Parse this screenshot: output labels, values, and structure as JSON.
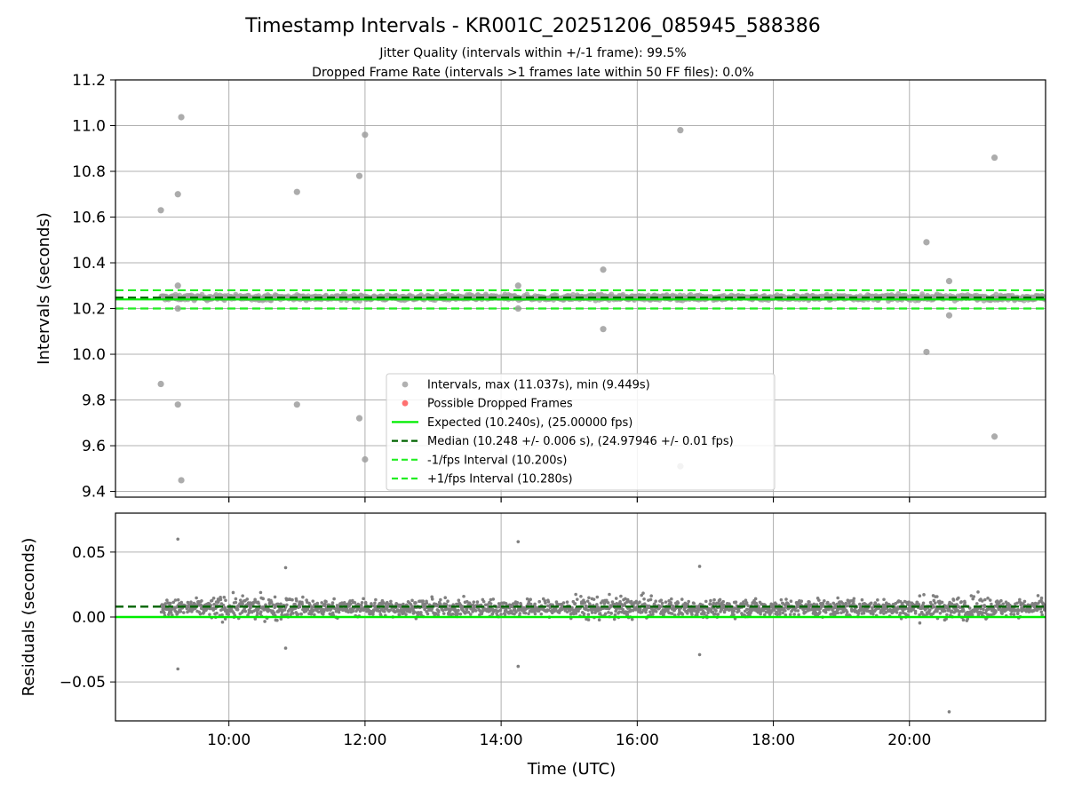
{
  "title": "Timestamp Intervals - KR001C_20251206_085945_588386",
  "subtitle_1": "Jitter Quality (intervals within +/-1 frame): 99.5%",
  "subtitle_2": "Dropped Frame Rate (intervals >1 frames late within 50 FF files): 0.0%",
  "colors": {
    "points": "#9e9e9e",
    "residual_points": "#808080",
    "dropped": "#ff4d4d",
    "expected": "#00ee00",
    "median": "#006400",
    "fps_band": "#22ee22",
    "grid": "#b0b0b0"
  },
  "chart_data": [
    {
      "type": "scatter",
      "panel": "top",
      "ylabel": "Intervals (seconds)",
      "xlim": [
        "08:20",
        "22:00"
      ],
      "ylim": [
        9.375,
        11.2
      ],
      "yticks": [
        "11.2",
        "11.0",
        "10.8",
        "10.6",
        "10.4",
        "10.2",
        "10.0",
        "9.8",
        "9.6",
        "9.4"
      ],
      "ytick_values": [
        11.2,
        11.0,
        10.8,
        10.6,
        10.4,
        10.2,
        10.0,
        9.8,
        9.6,
        9.4
      ],
      "grid": true,
      "legend_position": "bottom-center",
      "legend": [
        "Intervals, max (11.037s), min (9.449s)",
        "Possible Dropped Frames",
        "Expected (10.240s), (25.00000 fps)",
        "Median (10.248 +/- 0.006 s), (24.97946 +/- 0.01 fps)",
        "-1/fps Interval (10.200s)",
        "+1/fps Interval (10.280s)"
      ],
      "lines": {
        "expected": 10.24,
        "median": 10.248,
        "minus_fps": 10.2,
        "plus_fps": 10.28
      },
      "series": [
        {
          "name": "Intervals, max (11.037s), min (9.449s)",
          "band": {
            "x_range": [
              "09:00",
              "22:00"
            ],
            "center": 10.248,
            "spread": 0.018
          },
          "outliers": [
            {
              "x": "09:00",
              "y": 10.63
            },
            {
              "x": "09:00",
              "y": 9.87
            },
            {
              "x": "09:15",
              "y": 10.7
            },
            {
              "x": "09:15",
              "y": 9.78
            },
            {
              "x": "09:15",
              "y": 10.3
            },
            {
              "x": "09:15",
              "y": 10.2
            },
            {
              "x": "09:18",
              "y": 11.037
            },
            {
              "x": "09:18",
              "y": 9.449
            },
            {
              "x": "11:00",
              "y": 10.71
            },
            {
              "x": "11:00",
              "y": 9.78
            },
            {
              "x": "11:55",
              "y": 10.78
            },
            {
              "x": "11:55",
              "y": 9.72
            },
            {
              "x": "12:00",
              "y": 10.96
            },
            {
              "x": "12:00",
              "y": 9.54
            },
            {
              "x": "14:15",
              "y": 10.3
            },
            {
              "x": "14:15",
              "y": 10.2
            },
            {
              "x": "15:30",
              "y": 10.37
            },
            {
              "x": "15:30",
              "y": 10.11
            },
            {
              "x": "16:38",
              "y": 10.98
            },
            {
              "x": "16:38",
              "y": 9.51
            },
            {
              "x": "20:15",
              "y": 10.49
            },
            {
              "x": "20:15",
              "y": 10.01
            },
            {
              "x": "20:35",
              "y": 10.32
            },
            {
              "x": "20:35",
              "y": 10.17
            },
            {
              "x": "21:15",
              "y": 10.86
            },
            {
              "x": "21:15",
              "y": 9.64
            }
          ]
        },
        {
          "name": "Possible Dropped Frames",
          "values": []
        }
      ]
    },
    {
      "type": "scatter",
      "panel": "bottom",
      "xlabel": "Time (UTC)",
      "ylabel": "Residuals (seconds)",
      "xlim": [
        "08:20",
        "22:00"
      ],
      "xticks": [
        "10:00",
        "12:00",
        "14:00",
        "16:00",
        "18:00",
        "20:00"
      ],
      "ylim": [
        -0.08,
        0.08
      ],
      "yticks": [
        "0.05",
        "0.00",
        "−0.05"
      ],
      "ytick_values": [
        0.05,
        0.0,
        -0.05
      ],
      "grid": true,
      "lines": {
        "expected": 0.0,
        "median": 0.008
      },
      "band": {
        "x_range": [
          "09:00",
          "22:00"
        ],
        "center": 0.007,
        "spread": 0.008
      },
      "outliers": [
        {
          "x": "09:15",
          "y": 0.06
        },
        {
          "x": "09:15",
          "y": -0.04
        },
        {
          "x": "10:50",
          "y": 0.038
        },
        {
          "x": "10:50",
          "y": -0.024
        },
        {
          "x": "14:15",
          "y": 0.058
        },
        {
          "x": "14:15",
          "y": -0.038
        },
        {
          "x": "16:55",
          "y": 0.039
        },
        {
          "x": "16:55",
          "y": -0.029
        },
        {
          "x": "20:35",
          "y": -0.073
        }
      ]
    }
  ]
}
